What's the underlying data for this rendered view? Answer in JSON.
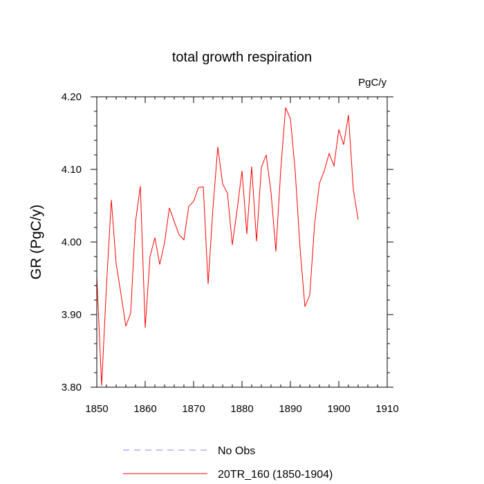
{
  "chart_data": {
    "type": "line",
    "title": "total growth respiration",
    "units": "PgC/y",
    "ylabel": "GR  (PgC/y)",
    "xlabel": "",
    "xlim": [
      1850,
      1910
    ],
    "ylim": [
      3.8,
      4.2
    ],
    "x_ticks": [
      1850,
      1860,
      1870,
      1880,
      1890,
      1900,
      1910
    ],
    "y_ticks": [
      3.8,
      3.9,
      4.0,
      4.1,
      4.2
    ],
    "x_tick_labels": [
      "1850",
      "1860",
      "1870",
      "1880",
      "1890",
      "1900",
      "1910"
    ],
    "y_tick_labels": [
      "3.80",
      "3.90",
      "4.00",
      "4.10",
      "4.20"
    ],
    "grid": false,
    "legend_position": "bottom",
    "series": [
      {
        "name": "No Obs",
        "style": "dashed",
        "color": "#8080ff",
        "x": [],
        "values": []
      },
      {
        "name": "20TR_160 (1850-1904)",
        "style": "solid",
        "color": "#ff0000",
        "x": [
          1850,
          1851,
          1852,
          1853,
          1854,
          1855,
          1856,
          1857,
          1858,
          1859,
          1860,
          1861,
          1862,
          1863,
          1864,
          1865,
          1866,
          1867,
          1868,
          1869,
          1870,
          1871,
          1872,
          1873,
          1874,
          1875,
          1876,
          1877,
          1878,
          1879,
          1880,
          1881,
          1882,
          1883,
          1884,
          1885,
          1886,
          1887,
          1888,
          1889,
          1890,
          1891,
          1892,
          1893,
          1894,
          1895,
          1896,
          1897,
          1898,
          1899,
          1900,
          1901,
          1902,
          1903,
          1904
        ],
        "values": [
          3.953,
          3.802,
          3.94,
          4.058,
          3.97,
          3.928,
          3.884,
          3.902,
          4.028,
          4.077,
          3.882,
          3.98,
          4.006,
          3.969,
          3.999,
          4.047,
          4.028,
          4.01,
          4.003,
          4.049,
          4.056,
          4.075,
          4.076,
          3.942,
          4.047,
          4.131,
          4.08,
          4.067,
          3.996,
          4.045,
          4.098,
          4.011,
          4.104,
          4.001,
          4.103,
          4.12,
          4.068,
          3.987,
          4.099,
          4.185,
          4.17,
          4.097,
          3.991,
          3.911,
          3.927,
          4.025,
          4.081,
          4.098,
          4.122,
          4.105,
          4.155,
          4.134,
          4.175,
          4.072,
          4.031
        ]
      }
    ]
  }
}
